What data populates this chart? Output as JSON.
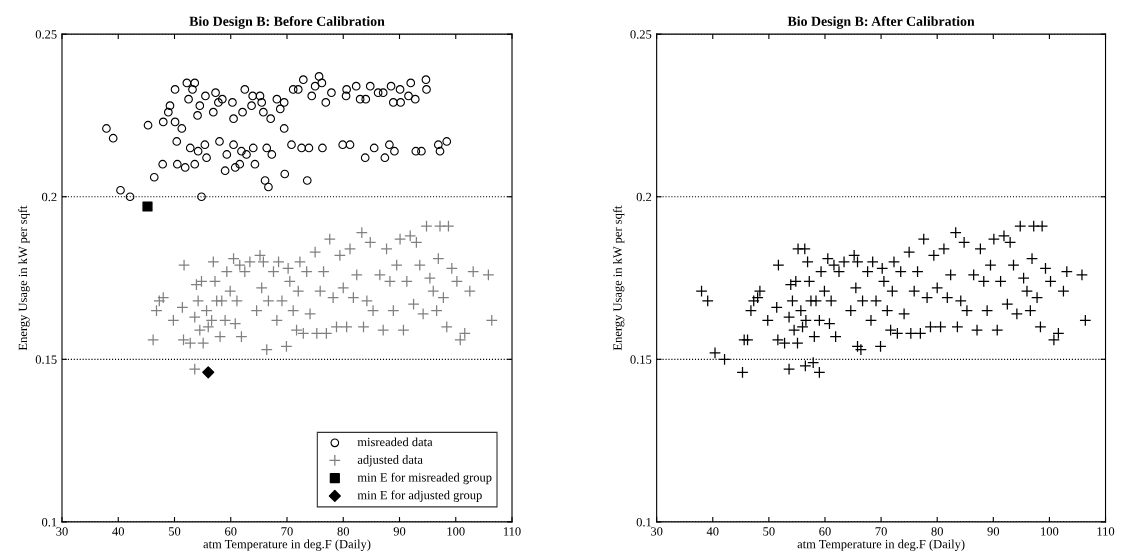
{
  "chart_data": [
    {
      "type": "scatter",
      "title": "Bio Design B: Before Calibration",
      "xlabel": "atm Temperature in deg.F (Daily)",
      "ylabel": "Energy Usage in kW per sqft",
      "xlim": [
        30,
        110
      ],
      "xticks": [
        30,
        40,
        50,
        60,
        70,
        80,
        90,
        100,
        110
      ],
      "ylim": [
        0.1,
        0.25
      ],
      "yticks": [
        0.1,
        0.15,
        0.2,
        0.25
      ],
      "grid": "y",
      "legend": "bottom right",
      "series": [
        {
          "name": "misreaded data",
          "color": "#000000",
          "marker": "circle",
          "x": [
            37.9,
            39.1,
            40.4,
            42.1,
            45.3,
            46.4,
            47.9,
            48.0,
            48.9,
            49.2,
            50.1,
            50.1,
            50.4,
            50.5,
            51.3,
            51.9,
            52.2,
            52.5,
            52.8,
            53.2,
            53.6,
            53.6,
            54.1,
            54.2,
            54.5,
            54.8,
            55.4,
            55.5,
            55.7,
            56.9,
            57.3,
            57.8,
            58.0,
            58.5,
            59.0,
            59.3,
            60.3,
            60.5,
            60.5,
            60.8,
            61.6,
            61.9,
            62.1,
            62.5,
            62.8,
            63.7,
            63.9,
            64.0,
            64.3,
            65.2,
            65.5,
            65.8,
            66.1,
            66.4,
            66.7,
            67.1,
            67.3,
            68.2,
            68.8,
            69.5,
            69.5,
            69.6,
            70.8,
            71.1,
            72.0,
            72.6,
            72.9,
            73.6,
            73.9,
            74.4,
            75.0,
            75.7,
            76.2,
            76.3,
            76.9,
            77.9,
            79.9,
            80.5,
            80.6,
            81.2,
            82.3,
            83.0,
            83.9,
            84.0,
            84.8,
            85.5,
            86.2,
            87.1,
            87.4,
            88.2,
            88.5,
            88.9,
            89.1,
            90.1,
            90.2,
            91.6,
            92.0,
            92.8,
            92.9,
            93.9,
            94.7,
            94.8,
            96.9,
            97.2,
            98.4
          ],
          "values": [
            0.221,
            0.218,
            0.202,
            0.2,
            0.222,
            0.206,
            0.21,
            0.223,
            0.226,
            0.228,
            0.233,
            0.223,
            0.217,
            0.21,
            0.221,
            0.209,
            0.235,
            0.23,
            0.215,
            0.233,
            0.235,
            0.21,
            0.225,
            0.214,
            0.228,
            0.2,
            0.216,
            0.231,
            0.212,
            0.226,
            0.232,
            0.229,
            0.217,
            0.23,
            0.208,
            0.213,
            0.229,
            0.224,
            0.216,
            0.209,
            0.21,
            0.214,
            0.226,
            0.233,
            0.213,
            0.228,
            0.231,
            0.215,
            0.21,
            0.231,
            0.229,
            0.226,
            0.205,
            0.215,
            0.203,
            0.224,
            0.213,
            0.23,
            0.227,
            0.221,
            0.229,
            0.207,
            0.216,
            0.233,
            0.233,
            0.215,
            0.236,
            0.205,
            0.215,
            0.231,
            0.234,
            0.237,
            0.235,
            0.215,
            0.229,
            0.232,
            0.216,
            0.231,
            0.233,
            0.216,
            0.234,
            0.23,
            0.212,
            0.23,
            0.234,
            0.215,
            0.232,
            0.232,
            0.212,
            0.216,
            0.234,
            0.229,
            0.214,
            0.233,
            0.229,
            0.231,
            0.235,
            0.23,
            0.214,
            0.214,
            0.236,
            0.233,
            0.216,
            0.214,
            0.217
          ]
        },
        {
          "name": "adjusted data",
          "color": "#808080",
          "marker": "cross",
          "x": [
            46.2,
            46.8,
            47.3,
            48.0,
            49.8,
            51.4,
            51.7,
            51.6,
            52.8,
            53.6,
            53.6,
            53.9,
            54.2,
            54.5,
            54.8,
            55.1,
            55.7,
            56.0,
            56.6,
            56.9,
            57.2,
            57.5,
            58.1,
            58.4,
            59.0,
            59.3,
            59.9,
            60.5,
            60.8,
            61.1,
            61.6,
            61.9,
            62.5,
            63.4,
            64.6,
            65.2,
            65.5,
            65.8,
            66.4,
            66.7,
            67.6,
            68.2,
            68.5,
            69.1,
            69.9,
            70.2,
            70.5,
            71.1,
            71.7,
            72.0,
            72.3,
            72.9,
            73.5,
            74.1,
            75.0,
            75.3,
            75.9,
            76.5,
            77.0,
            77.6,
            78.2,
            78.8,
            79.4,
            80.0,
            80.6,
            81.2,
            81.8,
            82.4,
            83.3,
            83.6,
            84.2,
            84.8,
            85.3,
            86.5,
            87.1,
            87.7,
            88.3,
            88.9,
            89.5,
            90.1,
            90.7,
            91.3,
            91.9,
            92.5,
            93.0,
            93.6,
            94.2,
            94.8,
            95.4,
            96.0,
            96.6,
            96.9,
            97.2,
            97.8,
            98.4,
            98.7,
            99.3,
            100.2,
            100.8,
            101.6,
            102.5,
            103.1,
            105.8,
            106.4
          ],
          "values": [
            0.156,
            0.165,
            0.168,
            0.169,
            0.162,
            0.166,
            0.179,
            0.156,
            0.155,
            0.163,
            0.147,
            0.173,
            0.168,
            0.159,
            0.174,
            0.155,
            0.165,
            0.16,
            0.162,
            0.18,
            0.174,
            0.168,
            0.157,
            0.168,
            0.162,
            0.177,
            0.171,
            0.181,
            0.161,
            0.168,
            0.179,
            0.157,
            0.177,
            0.18,
            0.165,
            0.182,
            0.172,
            0.18,
            0.153,
            0.168,
            0.177,
            0.162,
            0.18,
            0.168,
            0.154,
            0.178,
            0.174,
            0.165,
            0.159,
            0.171,
            0.18,
            0.158,
            0.177,
            0.164,
            0.183,
            0.158,
            0.171,
            0.177,
            0.158,
            0.187,
            0.169,
            0.16,
            0.182,
            0.172,
            0.16,
            0.184,
            0.169,
            0.176,
            0.189,
            0.16,
            0.168,
            0.186,
            0.165,
            0.176,
            0.159,
            0.184,
            0.174,
            0.165,
            0.179,
            0.187,
            0.159,
            0.174,
            0.188,
            0.167,
            0.186,
            0.179,
            0.164,
            0.191,
            0.175,
            0.171,
            0.165,
            0.181,
            0.191,
            0.169,
            0.16,
            0.191,
            0.178,
            0.174,
            0.156,
            0.158,
            0.171,
            0.177,
            0.176,
            0.162
          ]
        },
        {
          "name": "min E for misreaded group",
          "color": "#000000",
          "marker": "square",
          "x": [
            45.2
          ],
          "values": [
            0.197
          ]
        },
        {
          "name": "min E for adjusted group",
          "color": "#000000",
          "marker": "diamond",
          "x": [
            56.0
          ],
          "values": [
            0.146
          ]
        }
      ]
    },
    {
      "type": "scatter",
      "title": "Bio Design B: After Calibration",
      "xlabel": "atm Temperature in deg.F (Daily)",
      "ylabel": "Energy Usage in kW per sqft",
      "xlim": [
        30,
        110
      ],
      "xticks": [
        30,
        40,
        50,
        60,
        70,
        80,
        90,
        100,
        110
      ],
      "ylim": [
        0.1,
        0.25
      ],
      "yticks": [
        0.1,
        0.15,
        0.2,
        0.25
      ],
      "grid": "y",
      "series": [
        {
          "color": "#000000",
          "marker": "cross",
          "x": [
            38.0,
            39.1,
            40.4,
            42.1,
            45.3,
            45.6,
            48.4,
            56.5,
            57.9,
            59.0,
            55.2,
            56.4,
            65.8,
            46.2,
            46.8,
            47.3,
            48.0,
            49.8,
            51.4,
            51.7,
            51.6,
            52.8,
            53.6,
            53.6,
            53.9,
            54.2,
            54.5,
            54.8,
            55.1,
            55.7,
            56.0,
            56.6,
            56.9,
            57.2,
            57.5,
            58.1,
            58.4,
            59.0,
            59.3,
            59.9,
            60.5,
            60.8,
            61.1,
            61.6,
            61.9,
            62.5,
            63.4,
            64.6,
            65.2,
            65.5,
            65.8,
            66.4,
            66.7,
            67.6,
            68.2,
            68.5,
            69.1,
            69.9,
            70.2,
            70.5,
            71.1,
            71.7,
            72.0,
            72.3,
            72.9,
            73.5,
            74.1,
            75.0,
            75.3,
            75.9,
            76.5,
            77.0,
            77.6,
            78.2,
            78.8,
            79.4,
            80.0,
            80.6,
            81.2,
            81.8,
            82.4,
            83.3,
            83.6,
            84.2,
            84.8,
            85.3,
            86.5,
            87.1,
            87.7,
            88.3,
            88.9,
            89.5,
            90.1,
            90.7,
            91.3,
            91.9,
            92.5,
            93.0,
            93.6,
            94.2,
            94.8,
            95.4,
            96.0,
            96.6,
            96.9,
            97.2,
            97.8,
            98.4,
            98.7,
            99.3,
            100.2,
            100.8,
            101.6,
            102.5,
            103.1,
            105.8,
            106.4
          ],
          "values": [
            0.171,
            0.168,
            0.152,
            0.15,
            0.146,
            0.156,
            0.171,
            0.148,
            0.149,
            0.146,
            0.184,
            0.184,
            0.154,
            0.156,
            0.165,
            0.168,
            0.169,
            0.162,
            0.166,
            0.179,
            0.156,
            0.155,
            0.163,
            0.147,
            0.173,
            0.168,
            0.159,
            0.174,
            0.155,
            0.165,
            0.16,
            0.162,
            0.18,
            0.174,
            0.168,
            0.157,
            0.168,
            0.162,
            0.177,
            0.171,
            0.181,
            0.161,
            0.168,
            0.179,
            0.157,
            0.177,
            0.18,
            0.165,
            0.182,
            0.172,
            0.18,
            0.153,
            0.168,
            0.177,
            0.162,
            0.18,
            0.168,
            0.154,
            0.178,
            0.174,
            0.165,
            0.159,
            0.171,
            0.18,
            0.158,
            0.177,
            0.164,
            0.183,
            0.158,
            0.171,
            0.177,
            0.158,
            0.187,
            0.169,
            0.16,
            0.182,
            0.172,
            0.16,
            0.184,
            0.169,
            0.176,
            0.189,
            0.16,
            0.168,
            0.186,
            0.165,
            0.176,
            0.159,
            0.184,
            0.174,
            0.165,
            0.179,
            0.187,
            0.159,
            0.174,
            0.188,
            0.167,
            0.186,
            0.179,
            0.164,
            0.191,
            0.175,
            0.171,
            0.165,
            0.181,
            0.191,
            0.169,
            0.16,
            0.191,
            0.178,
            0.174,
            0.156,
            0.158,
            0.171,
            0.177,
            0.176,
            0.162
          ]
        }
      ]
    }
  ]
}
